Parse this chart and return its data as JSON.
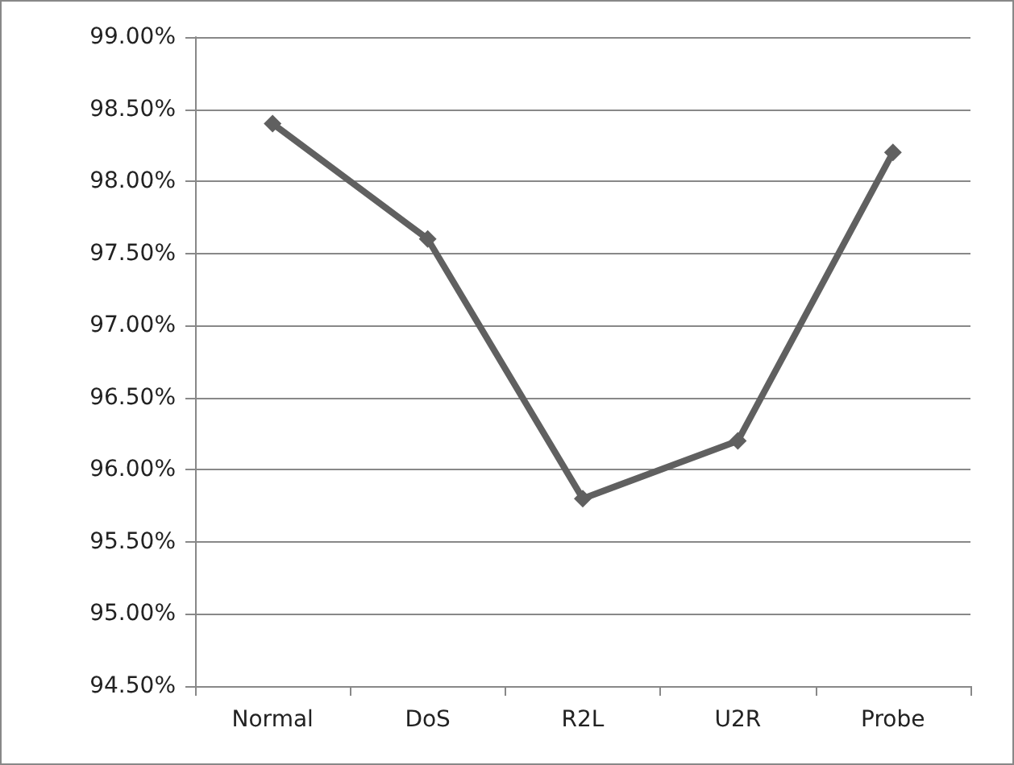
{
  "chart_data": {
    "type": "line",
    "categories": [
      "Normal",
      "DoS",
      "R2L",
      "U2R",
      "Probe"
    ],
    "series": [
      {
        "color": "#606060",
        "values": [
          98.4,
          97.6,
          95.8,
          96.2,
          98.2
        ]
      }
    ],
    "ylim": [
      94.5,
      99
    ],
    "yticks": [
      {
        "value": 94.5,
        "label": "94.50%"
      },
      {
        "value": 95,
        "label": "95.00%"
      },
      {
        "value": 95.5,
        "label": "95.50%"
      },
      {
        "value": 96,
        "label": "96.00%"
      },
      {
        "value": 96.5,
        "label": "96.50%"
      },
      {
        "value": 97,
        "label": "97.00%"
      },
      {
        "value": 97.5,
        "label": "97.50%"
      },
      {
        "value": 98,
        "label": "98.00%"
      },
      {
        "value": 98.5,
        "label": "98.50%"
      },
      {
        "value": 99,
        "label": "99.00%"
      }
    ],
    "grid": "y",
    "marker": "diamond",
    "line_style": "solid"
  }
}
